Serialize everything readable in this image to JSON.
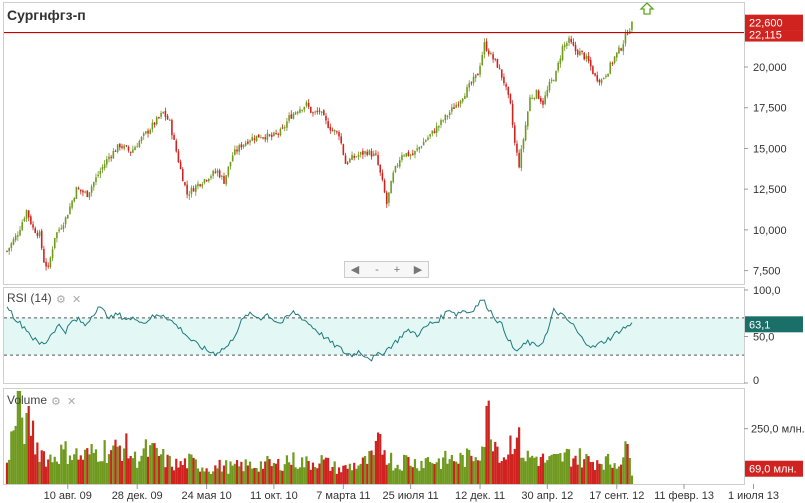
{
  "chart_data": [
    {
      "type": "candlestick",
      "title": "Сургнфгз-п",
      "ylim": [
        6800,
        23500
      ],
      "y_ticks": [
        7500,
        10000,
        12500,
        15000,
        17500,
        20000
      ],
      "y_tick_labels": [
        "7,500",
        "10,000",
        "12,500",
        "15,000",
        "17,500",
        "20,000"
      ],
      "last_price": 22600,
      "last_price_label": "22,600",
      "resistance_level": 22115,
      "resistance_label": "22,115",
      "up_color": "#6f9a1f",
      "down_color": "#d0231f",
      "resistance_color": "#c40000",
      "badge_color": "#d0231f",
      "close_path": [
        [
          0,
          8700
        ],
        [
          5,
          9800
        ],
        [
          9,
          11200
        ],
        [
          12,
          10100
        ],
        [
          15,
          9700
        ],
        [
          17,
          8100
        ],
        [
          19,
          7600
        ],
        [
          22,
          9600
        ],
        [
          27,
          10700
        ],
        [
          32,
          12500
        ],
        [
          37,
          12200
        ],
        [
          42,
          13400
        ],
        [
          47,
          14500
        ],
        [
          52,
          15200
        ],
        [
          57,
          14800
        ],
        [
          62,
          15600
        ],
        [
          67,
          16400
        ],
        [
          72,
          17200
        ],
        [
          75,
          16600
        ],
        [
          77,
          15400
        ],
        [
          80,
          13700
        ],
        [
          83,
          12200
        ],
        [
          88,
          12800
        ],
        [
          93,
          13300
        ],
        [
          97,
          13600
        ],
        [
          100,
          13000
        ],
        [
          104,
          14600
        ],
        [
          108,
          15200
        ],
        [
          112,
          15600
        ],
        [
          117,
          15800
        ],
        [
          122,
          15700
        ],
        [
          127,
          16100
        ],
        [
          130,
          16900
        ],
        [
          134,
          17400
        ],
        [
          138,
          17700
        ],
        [
          141,
          17100
        ],
        [
          144,
          17300
        ],
        [
          147,
          16600
        ],
        [
          150,
          16100
        ],
        [
          153,
          15900
        ],
        [
          156,
          14100
        ],
        [
          159,
          14400
        ],
        [
          162,
          14600
        ],
        [
          166,
          14800
        ],
        [
          170,
          14500
        ],
        [
          173,
          12900
        ],
        [
          175,
          11600
        ],
        [
          178,
          13400
        ],
        [
          182,
          14700
        ],
        [
          187,
          14600
        ],
        [
          192,
          15400
        ],
        [
          197,
          16100
        ],
        [
          202,
          16900
        ],
        [
          207,
          17700
        ],
        [
          212,
          18600
        ],
        [
          217,
          19600
        ],
        [
          220,
          21400
        ],
        [
          223,
          20700
        ],
        [
          226,
          20100
        ],
        [
          229,
          19100
        ],
        [
          232,
          17600
        ],
        [
          234,
          15300
        ],
        [
          236,
          14000
        ],
        [
          238,
          15600
        ],
        [
          241,
          18100
        ],
        [
          244,
          18400
        ],
        [
          247,
          17800
        ],
        [
          250,
          18900
        ],
        [
          253,
          19600
        ],
        [
          256,
          21200
        ],
        [
          259,
          21600
        ],
        [
          262,
          21000
        ],
        [
          265,
          20800
        ],
        [
          268,
          20300
        ],
        [
          271,
          19400
        ],
        [
          274,
          19200
        ],
        [
          277,
          19800
        ],
        [
          280,
          20600
        ],
        [
          283,
          21200
        ],
        [
          286,
          22200
        ],
        [
          288,
          22600
        ]
      ],
      "x_tick_labels": [
        "10 авг. 09",
        "28 дек. 09",
        "24 мая 10",
        "11 окт. 10",
        "7 марта 11",
        "25 июля 11",
        "12 дек. 11",
        "30 апр. 12",
        "17 сент. 12",
        "11 февр. 13",
        "1 июля 13"
      ],
      "x_tick_index": [
        28,
        60,
        92,
        123,
        155,
        186,
        218,
        249,
        281,
        312,
        344
      ],
      "nav_buttons": [
        "◀",
        "-",
        "+",
        "▶"
      ]
    },
    {
      "type": "line",
      "title": "RSI (14)",
      "ylim": [
        0,
        100
      ],
      "y_ticks": [
        0,
        50,
        100
      ],
      "y_tick_labels": [
        "0",
        "50,0",
        "100,0"
      ],
      "band": [
        30,
        70
      ],
      "current_value": 63.1,
      "current_label": "63,1",
      "line_color": "#1f7b7b",
      "band_fill": "#e3f7f5",
      "badge_color": "#1a7068",
      "path": [
        [
          0,
          84
        ],
        [
          3,
          72
        ],
        [
          6,
          64
        ],
        [
          9,
          58
        ],
        [
          12,
          48
        ],
        [
          15,
          42
        ],
        [
          18,
          44
        ],
        [
          21,
          55
        ],
        [
          24,
          62
        ],
        [
          27,
          56
        ],
        [
          30,
          66
        ],
        [
          33,
          68
        ],
        [
          36,
          62
        ],
        [
          39,
          72
        ],
        [
          42,
          82
        ],
        [
          45,
          76
        ],
        [
          48,
          70
        ],
        [
          51,
          74
        ],
        [
          54,
          70
        ],
        [
          57,
          68
        ],
        [
          60,
          70
        ],
        [
          63,
          64
        ],
        [
          66,
          70
        ],
        [
          69,
          72
        ],
        [
          72,
          74
        ],
        [
          75,
          68
        ],
        [
          78,
          62
        ],
        [
          81,
          56
        ],
        [
          84,
          48
        ],
        [
          87,
          42
        ],
        [
          90,
          38
        ],
        [
          93,
          34
        ],
        [
          96,
          32
        ],
        [
          99,
          36
        ],
        [
          102,
          40
        ],
        [
          105,
          52
        ],
        [
          108,
          66
        ],
        [
          111,
          74
        ],
        [
          114,
          72
        ],
        [
          117,
          70
        ],
        [
          120,
          74
        ],
        [
          123,
          68
        ],
        [
          126,
          64
        ],
        [
          129,
          70
        ],
        [
          132,
          76
        ],
        [
          135,
          72
        ],
        [
          138,
          66
        ],
        [
          141,
          60
        ],
        [
          144,
          54
        ],
        [
          147,
          48
        ],
        [
          150,
          42
        ],
        [
          153,
          38
        ],
        [
          156,
          32
        ],
        [
          159,
          30
        ],
        [
          162,
          34
        ],
        [
          165,
          30
        ],
        [
          168,
          26
        ],
        [
          171,
          30
        ],
        [
          174,
          34
        ],
        [
          177,
          40
        ],
        [
          180,
          46
        ],
        [
          183,
          54
        ],
        [
          186,
          56
        ],
        [
          189,
          52
        ],
        [
          192,
          58
        ],
        [
          195,
          64
        ],
        [
          198,
          66
        ],
        [
          201,
          72
        ],
        [
          204,
          80
        ],
        [
          207,
          74
        ],
        [
          210,
          78
        ],
        [
          213,
          76
        ],
        [
          216,
          82
        ],
        [
          219,
          90
        ],
        [
          222,
          80
        ],
        [
          225,
          70
        ],
        [
          228,
          62
        ],
        [
          231,
          48
        ],
        [
          234,
          34
        ],
        [
          237,
          38
        ],
        [
          240,
          44
        ],
        [
          243,
          40
        ],
        [
          246,
          42
        ],
        [
          249,
          54
        ],
        [
          252,
          78
        ],
        [
          255,
          74
        ],
        [
          258,
          68
        ],
        [
          261,
          62
        ],
        [
          264,
          50
        ],
        [
          267,
          44
        ],
        [
          270,
          38
        ],
        [
          273,
          42
        ],
        [
          276,
          46
        ],
        [
          279,
          50
        ],
        [
          282,
          56
        ],
        [
          285,
          60
        ],
        [
          288,
          63.1
        ]
      ]
    },
    {
      "type": "bar",
      "title": "Volume",
      "ylim": [
        0,
        420
      ],
      "y_ticks": [
        250
      ],
      "y_tick_labels": [
        "250,0 млн."
      ],
      "current_value": 69.0,
      "current_label": "69,0 млн.",
      "badge_color": "#d0231f",
      "volume_path": [
        [
          0,
          130
        ],
        [
          3,
          250
        ],
        [
          5,
          400
        ],
        [
          7,
          330
        ],
        [
          9,
          260
        ],
        [
          11,
          300
        ],
        [
          13,
          200
        ],
        [
          16,
          160
        ],
        [
          19,
          120
        ],
        [
          24,
          150
        ],
        [
          29,
          160
        ],
        [
          34,
          130
        ],
        [
          39,
          150
        ],
        [
          44,
          170
        ],
        [
          49,
          160
        ],
        [
          54,
          190
        ],
        [
          59,
          120
        ],
        [
          64,
          160
        ],
        [
          69,
          150
        ],
        [
          74,
          110
        ],
        [
          79,
          90
        ],
        [
          84,
          110
        ],
        [
          89,
          90
        ],
        [
          94,
          75
        ],
        [
          99,
          90
        ],
        [
          104,
          80
        ],
        [
          109,
          90
        ],
        [
          114,
          90
        ],
        [
          119,
          100
        ],
        [
          124,
          90
        ],
        [
          129,
          120
        ],
        [
          134,
          110
        ],
        [
          139,
          100
        ],
        [
          144,
          120
        ],
        [
          149,
          90
        ],
        [
          154,
          70
        ],
        [
          159,
          90
        ],
        [
          164,
          100
        ],
        [
          169,
          130
        ],
        [
          172,
          210
        ],
        [
          175,
          150
        ],
        [
          179,
          90
        ],
        [
          184,
          120
        ],
        [
          189,
          100
        ],
        [
          194,
          120
        ],
        [
          199,
          110
        ],
        [
          204,
          120
        ],
        [
          209,
          120
        ],
        [
          214,
          130
        ],
        [
          219,
          190
        ],
        [
          222,
          350
        ],
        [
          225,
          210
        ],
        [
          229,
          130
        ],
        [
          234,
          250
        ],
        [
          239,
          130
        ],
        [
          244,
          130
        ],
        [
          249,
          110
        ],
        [
          254,
          120
        ],
        [
          259,
          140
        ],
        [
          264,
          130
        ],
        [
          269,
          110
        ],
        [
          274,
          120
        ],
        [
          279,
          100
        ],
        [
          284,
          130
        ],
        [
          287,
          200
        ],
        [
          288,
          69
        ]
      ]
    }
  ]
}
